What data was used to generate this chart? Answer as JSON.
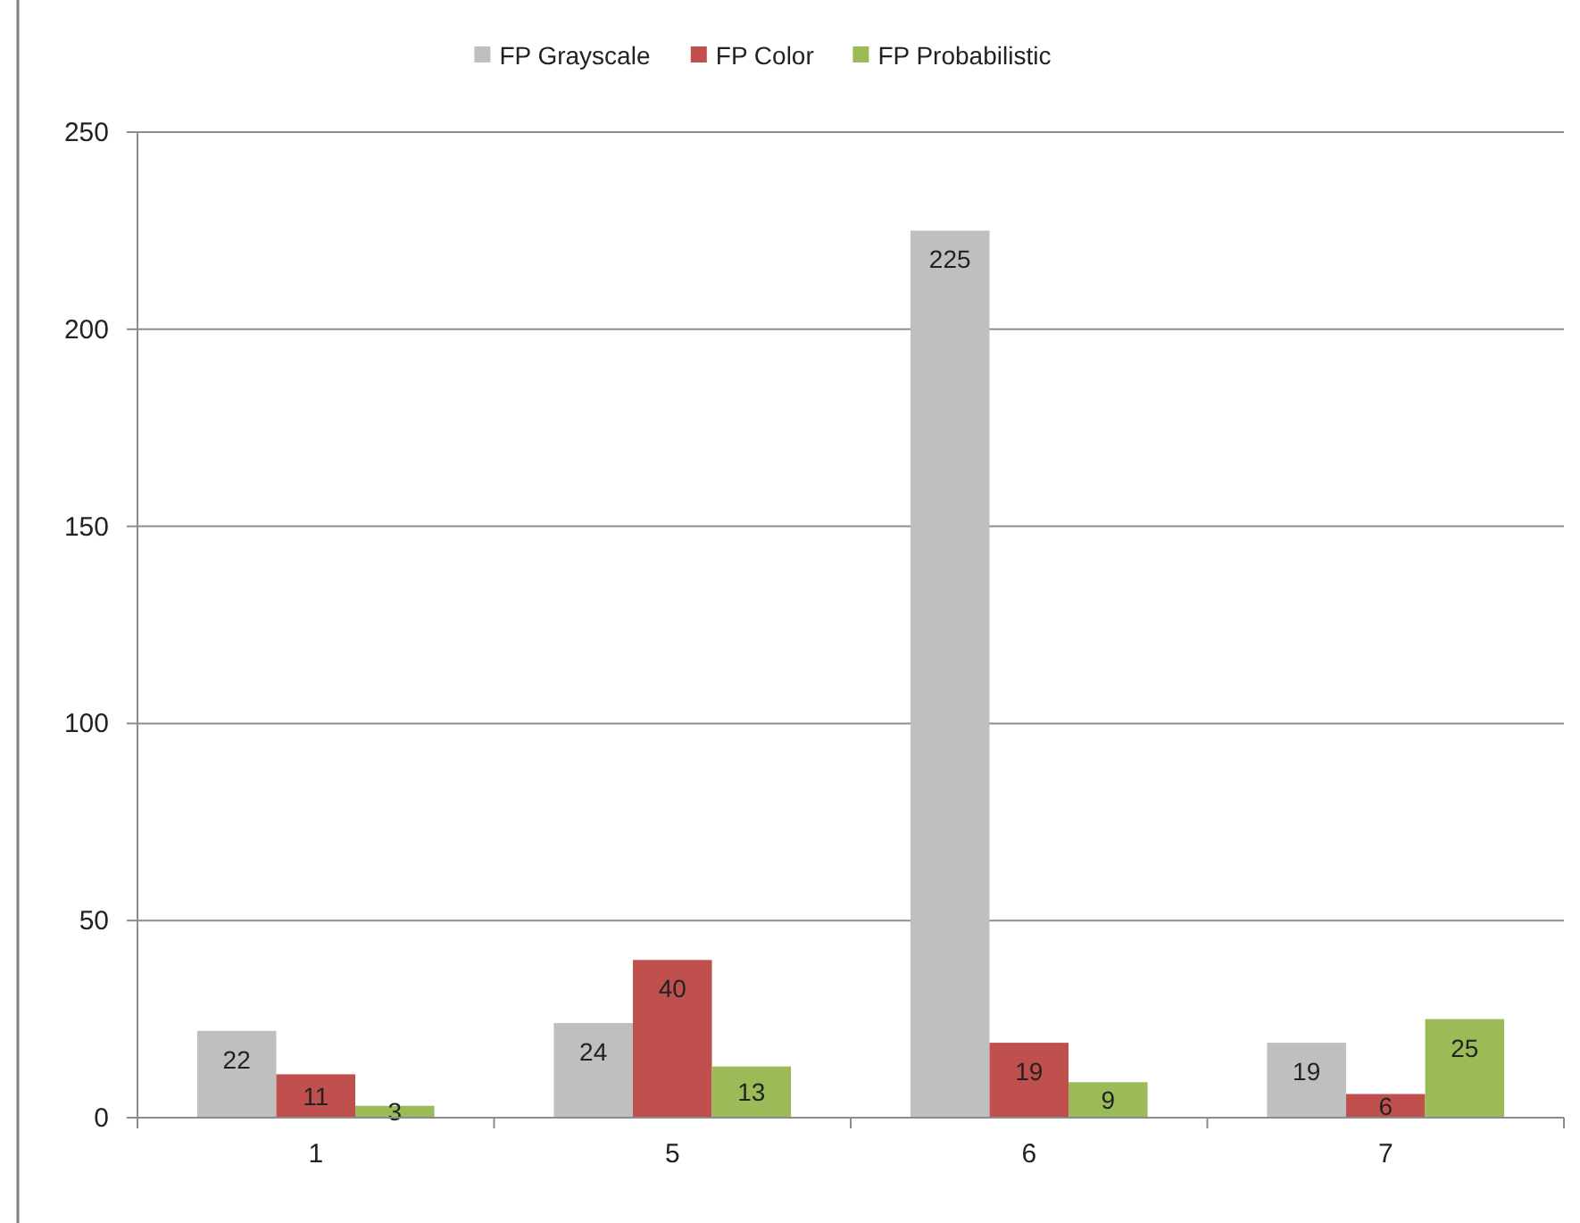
{
  "chart_data": {
    "type": "bar",
    "categories": [
      "1",
      "5",
      "6",
      "7"
    ],
    "series": [
      {
        "name": "FP Grayscale",
        "color": "#bfbfbf",
        "values": [
          22,
          24,
          225,
          19
        ]
      },
      {
        "name": "FP Color",
        "color": "#c0504d",
        "values": [
          11,
          40,
          19,
          6
        ]
      },
      {
        "name": "FP Probabilistic",
        "color": "#9bbb59",
        "values": [
          3,
          13,
          9,
          25
        ]
      }
    ],
    "ylim": [
      0,
      250
    ],
    "yticks": [
      0,
      50,
      100,
      150,
      200,
      250
    ],
    "grid": "y",
    "legend": "top",
    "data_labels": true
  }
}
